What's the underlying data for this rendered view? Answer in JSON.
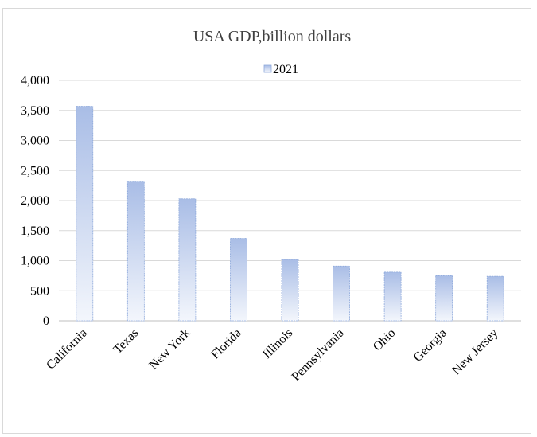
{
  "chart_data": {
    "type": "bar",
    "title": "USA GDP,billion dollars",
    "xlabel": "",
    "ylabel": "",
    "categories": [
      "California",
      "Texas",
      "New York",
      "Florida",
      "Illinois",
      "Pennsylvania",
      "Ohio",
      "Georgia",
      "New Jersey"
    ],
    "series": [
      {
        "name": "2021",
        "values": [
          3570,
          2310,
          2030,
          1370,
          1020,
          910,
          810,
          750,
          740
        ]
      }
    ],
    "ylim": [
      0,
      4000
    ],
    "yticks": [
      0,
      500,
      1000,
      1500,
      2000,
      2500,
      3000,
      3500,
      4000
    ],
    "ytick_labels": [
      "0",
      "500",
      "1,000",
      "1,500",
      "2,000",
      "2,500",
      "3,000",
      "3,500",
      "4,000"
    ],
    "grid": "horizontal",
    "legend_position": "top",
    "colors": {
      "bar_top": "#a9bde6",
      "bar_bottom": "#f3f6fc",
      "bar_border": "#8ea9db",
      "grid": "#d9d9d9",
      "axis": "#bfbfbf"
    }
  }
}
